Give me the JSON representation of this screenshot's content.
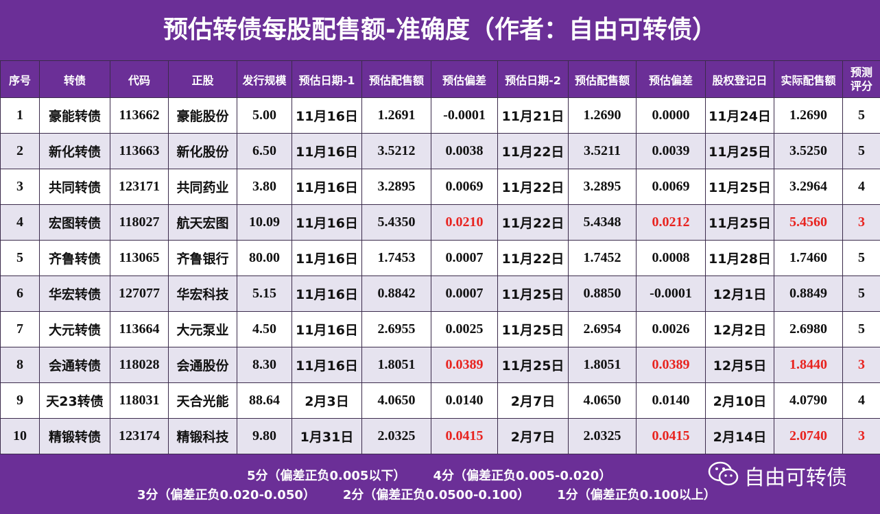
{
  "title": "预估转债每股配售额-准确度（作者：自由可转债）",
  "highlight": {
    "color": "#e8231f",
    "rows": [
      3,
      7,
      9
    ],
    "columns": [
      7,
      10,
      12,
      13
    ]
  },
  "table": {
    "header": [
      "序号",
      "转债",
      "代码",
      "正股",
      "发行规模",
      "预估日期-1",
      "预估配售额",
      "预估偏差",
      "预估日期-2",
      "预估配售额",
      "预估偏差",
      "股权登记日",
      "实际配售额",
      "预测评分"
    ],
    "rows": [
      [
        "1",
        "豪能转债",
        "113662",
        "豪能股份",
        "5.00",
        "11月16日",
        "1.2691",
        "-0.0001",
        "11月21日",
        "1.2690",
        "0.0000",
        "11月24日",
        "1.2690",
        "5"
      ],
      [
        "2",
        "新化转债",
        "113663",
        "新化股份",
        "6.50",
        "11月16日",
        "3.5212",
        "0.0038",
        "11月22日",
        "3.5211",
        "0.0039",
        "11月25日",
        "3.5250",
        "5"
      ],
      [
        "3",
        "共同转债",
        "123171",
        "共同药业",
        "3.80",
        "11月16日",
        "3.2895",
        "0.0069",
        "11月22日",
        "3.2895",
        "0.0069",
        "11月25日",
        "3.2964",
        "4"
      ],
      [
        "4",
        "宏图转债",
        "118027",
        "航天宏图",
        "10.09",
        "11月16日",
        "5.4350",
        "0.0210",
        "11月22日",
        "5.4348",
        "0.0212",
        "11月25日",
        "5.4560",
        "3"
      ],
      [
        "5",
        "齐鲁转债",
        "113065",
        "齐鲁银行",
        "80.00",
        "11月16日",
        "1.7453",
        "0.0007",
        "11月22日",
        "1.7452",
        "0.0008",
        "11月28日",
        "1.7460",
        "5"
      ],
      [
        "6",
        "华宏转债",
        "127077",
        "华宏科技",
        "5.15",
        "11月16日",
        "0.8842",
        "0.0007",
        "11月25日",
        "0.8850",
        "-0.0001",
        "12月1日",
        "0.8849",
        "5"
      ],
      [
        "7",
        "大元转债",
        "113664",
        "大元泵业",
        "4.50",
        "11月16日",
        "2.6955",
        "0.0025",
        "11月25日",
        "2.6954",
        "0.0026",
        "12月2日",
        "2.6980",
        "5"
      ],
      [
        "8",
        "会通转债",
        "118028",
        "会通股份",
        "8.30",
        "11月16日",
        "1.8051",
        "0.0389",
        "11月25日",
        "1.8051",
        "0.0389",
        "12月5日",
        "1.8440",
        "3"
      ],
      [
        "9",
        "天23转债",
        "118031",
        "天合光能",
        "88.64",
        "2月3日",
        "4.0650",
        "0.0140",
        "2月7日",
        "4.0650",
        "0.0140",
        "2月10日",
        "4.0790",
        "4"
      ],
      [
        "10",
        "精锻转债",
        "123174",
        "精锻科技",
        "9.80",
        "1月31日",
        "2.0325",
        "0.0415",
        "2月7日",
        "2.0325",
        "0.0415",
        "2月14日",
        "2.0740",
        "3"
      ]
    ]
  },
  "footer": {
    "lines": [
      [
        "5分（偏差正负0.005以下）",
        "4分（偏差正负0.005-0.020）"
      ],
      [
        "3分（偏差正负0.020-0.050）",
        "2分（偏差正负0.0500-0.100）",
        "1分（偏差正负0.100以上）"
      ]
    ],
    "watermark": "自由可转债"
  }
}
